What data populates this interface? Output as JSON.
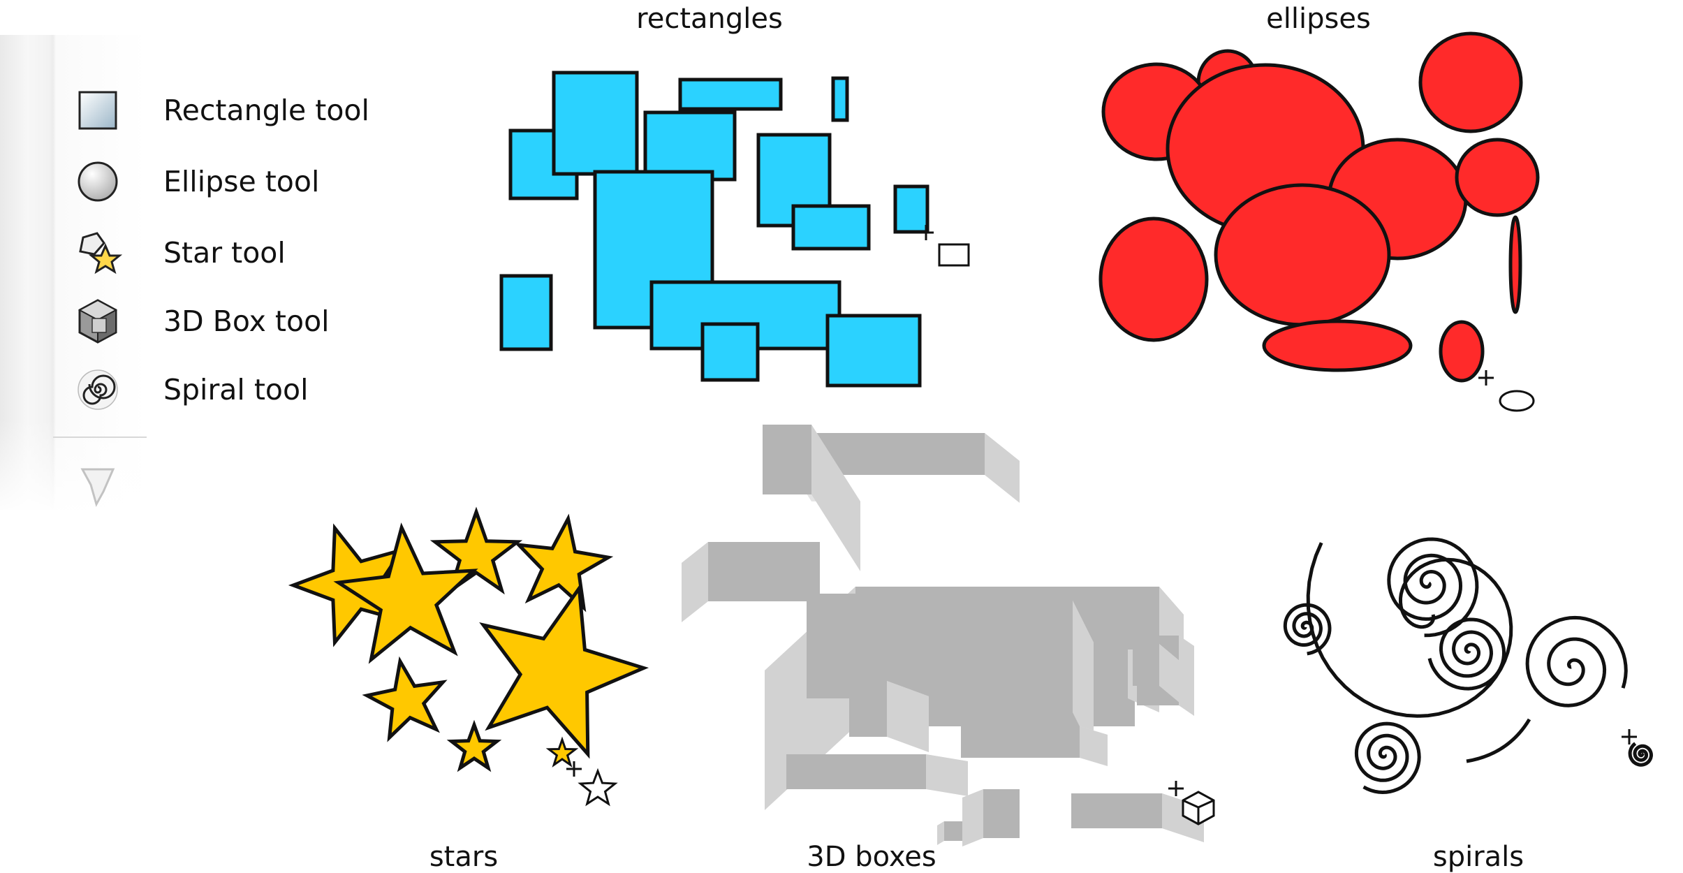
{
  "toolbar": {
    "tools": [
      {
        "label": "Rectangle tool",
        "icon": "rectangle-tool-icon"
      },
      {
        "label": "Ellipse tool",
        "icon": "ellipse-tool-icon"
      },
      {
        "label": "Star tool",
        "icon": "star-tool-icon"
      },
      {
        "label": "3D Box tool",
        "icon": "3d-box-tool-icon"
      },
      {
        "label": "Spiral tool",
        "icon": "spiral-tool-icon"
      }
    ],
    "partial_icon": "pen-tool-icon"
  },
  "captions": {
    "rectangles": "rectangles",
    "ellipses": "ellipses",
    "stars": "stars",
    "boxes": "3D boxes",
    "spirals": "spirals"
  },
  "colors": {
    "rectangles": "#2bd2ff",
    "ellipses": "#ff2a2a",
    "stars": "#ffc800",
    "box_top": "#e4e4e4",
    "box_front": "#b4b4b4",
    "box_side": "#d2d2d2",
    "stroke": "#111111"
  }
}
